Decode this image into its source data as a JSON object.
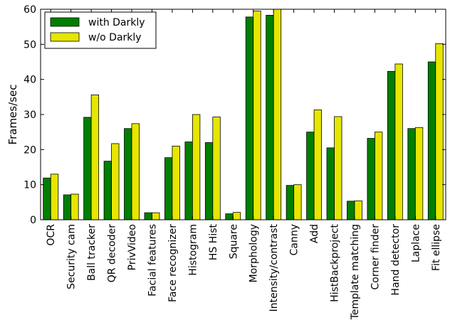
{
  "chart_data": {
    "type": "bar",
    "ylabel": "Frames/sec",
    "xlabel": "",
    "ylim": [
      0,
      60
    ],
    "yticks": [
      0,
      10,
      20,
      30,
      40,
      50,
      60
    ],
    "grid": false,
    "legend_position": "top-left",
    "categories": [
      "OCR",
      "Security cam",
      "Ball tracker",
      "QR decoder",
      "PrivVideo",
      "Facial features",
      "Face recognizer",
      "Histogram",
      "HS Hist",
      "Square",
      "Morphology",
      "Intensity/contrast",
      "Canny",
      "Add",
      "HistBackproject",
      "Template matching",
      "Corner finder",
      "Hand detector",
      "Laplace",
      "Fit ellipse"
    ],
    "series": [
      {
        "name": "with Darkly",
        "color": "#007f00",
        "values": [
          11.9,
          7.1,
          29.2,
          16.7,
          26.0,
          2.0,
          17.7,
          22.2,
          22.0,
          1.7,
          57.8,
          58.3,
          9.8,
          25.0,
          20.5,
          5.3,
          23.2,
          42.3,
          26.0,
          45.0
        ]
      },
      {
        "name": "w/o Darkly",
        "color": "#e6e600",
        "values": [
          13.0,
          7.3,
          35.6,
          21.7,
          27.4,
          2.0,
          21.0,
          30.0,
          29.3,
          2.1,
          59.5,
          60.0,
          10.0,
          31.3,
          29.4,
          5.4,
          25.0,
          44.4,
          26.3,
          50.2
        ]
      }
    ]
  }
}
